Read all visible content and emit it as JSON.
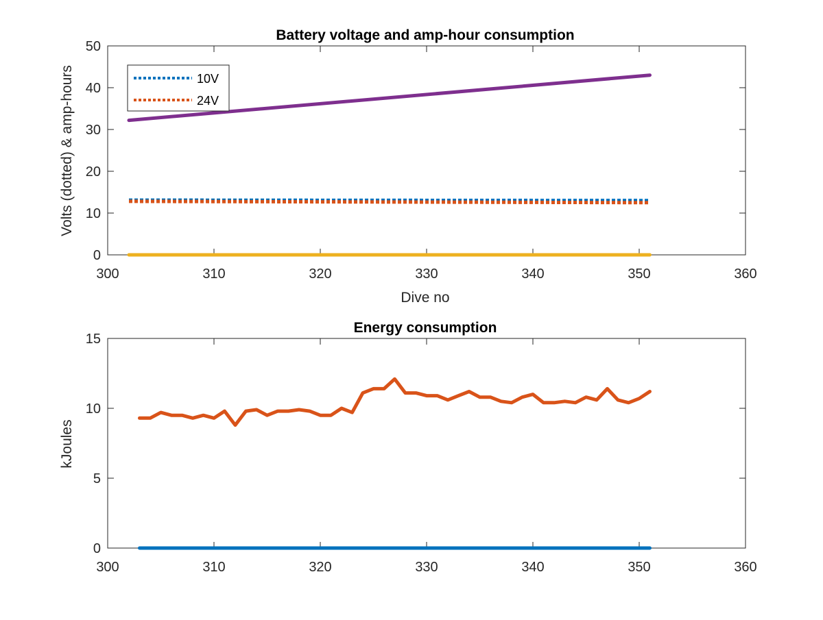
{
  "chart_data": [
    {
      "type": "line",
      "title": "Battery voltage and amp-hour consumption",
      "xlabel": "Dive no",
      "ylabel": "Volts (dotted) & amp-hours",
      "xlim": [
        300,
        360
      ],
      "ylim": [
        0,
        50
      ],
      "xticks": [
        "300",
        "310",
        "320",
        "330",
        "340",
        "350",
        "360"
      ],
      "yticks": [
        "0",
        "10",
        "20",
        "30",
        "40",
        "50"
      ],
      "legend_position": "top-left",
      "series": [
        {
          "name": "10V",
          "style": "dotted",
          "color": "#0072BD",
          "x": [
            302,
            351
          ],
          "y": [
            13.1,
            13.0
          ]
        },
        {
          "name": "24V",
          "style": "dotted",
          "color": "#D95319",
          "x": [
            302,
            351
          ],
          "y": [
            12.8,
            12.5
          ]
        },
        {
          "style": "solid",
          "color": "#7E2F8E",
          "x": [
            302,
            351
          ],
          "y": [
            32.2,
            43.0
          ]
        },
        {
          "style": "solid",
          "color": "#EDB120",
          "x": [
            302,
            351
          ],
          "y": [
            0,
            0
          ]
        }
      ]
    },
    {
      "type": "line",
      "title": "Energy consumption",
      "xlabel": "",
      "ylabel": "kJoules",
      "xlim": [
        300,
        360
      ],
      "ylim": [
        0,
        15
      ],
      "xticks": [
        "300",
        "310",
        "320",
        "330",
        "340",
        "350",
        "360"
      ],
      "yticks": [
        "0",
        "5",
        "10",
        "15"
      ],
      "series": [
        {
          "style": "solid",
          "color": "#0072BD",
          "x": [
            303,
            351
          ],
          "y": [
            0,
            0
          ]
        },
        {
          "style": "solid",
          "color": "#D95319",
          "x": [
            303,
            304,
            305,
            306,
            307,
            308,
            309,
            310,
            311,
            312,
            313,
            314,
            315,
            316,
            317,
            318,
            319,
            320,
            321,
            322,
            323,
            324,
            325,
            326,
            327,
            328,
            329,
            330,
            331,
            332,
            333,
            334,
            335,
            336,
            337,
            338,
            339,
            340,
            341,
            342,
            343,
            344,
            345,
            346,
            347,
            348,
            349,
            350,
            351
          ],
          "y": [
            9.3,
            9.3,
            9.7,
            9.5,
            9.5,
            9.3,
            9.5,
            9.3,
            9.8,
            8.8,
            9.8,
            9.9,
            9.5,
            9.8,
            9.8,
            9.9,
            9.8,
            9.5,
            9.5,
            10.0,
            9.7,
            11.1,
            11.4,
            11.4,
            12.1,
            11.1,
            11.1,
            10.9,
            10.9,
            10.6,
            10.9,
            11.2,
            10.8,
            10.8,
            10.5,
            10.4,
            10.8,
            11.0,
            10.4,
            10.4,
            10.5,
            10.4,
            10.8,
            10.6,
            11.4,
            10.6,
            10.4,
            10.7,
            11.2
          ]
        }
      ]
    }
  ]
}
